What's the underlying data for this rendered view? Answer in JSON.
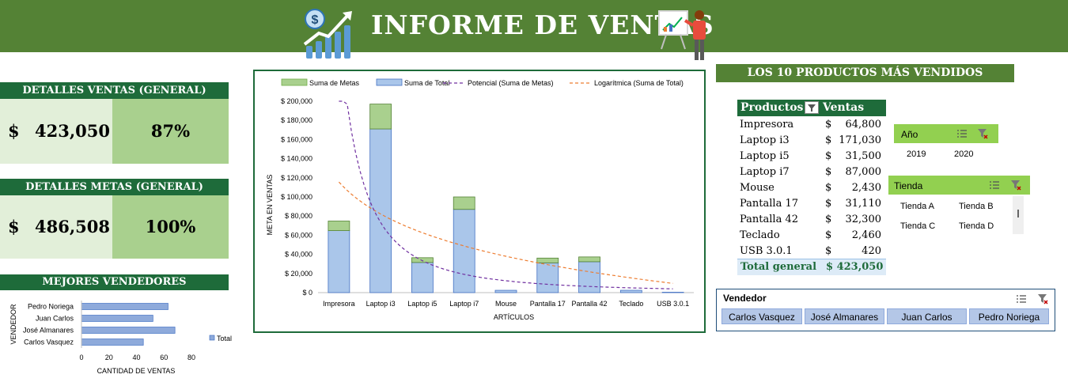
{
  "header": {
    "title": "INFORME DE VENTAS",
    "icons": [
      "dollar-growth-icon",
      "presenter-board-icon"
    ],
    "color": "#548235"
  },
  "ventas": {
    "title": "DETALLES VENTAS (GENERAL)",
    "currency": "$",
    "amount": "423,050",
    "percent": "87%"
  },
  "metas": {
    "title": "DETALLES METAS (GENERAL)",
    "currency": "$",
    "amount": "486,508",
    "percent": "100%"
  },
  "vendedores_chart": {
    "title": "MEJORES VENDEDORES",
    "chart_data": {
      "type": "bar",
      "orientation": "horizontal",
      "categories": [
        "Pedro Noriega",
        "Juan Carlos",
        "José Almanares",
        "Carlos Vasquez"
      ],
      "series": [
        {
          "name": "Total",
          "values": [
            63,
            52,
            68,
            45
          ]
        }
      ],
      "xlabel": "CANTIDAD DE VENTAS",
      "ylabel": "VENDEDOR",
      "xticks": [
        "0",
        "20",
        "40",
        "60",
        "80"
      ],
      "xlim": [
        0,
        80
      ],
      "legend": "right"
    }
  },
  "main_chart": {
    "chart_data": {
      "type": "bar",
      "stacked": true,
      "categories": [
        "Impresora",
        "Laptop i3",
        "Laptop i5",
        "Laptop i7",
        "Mouse",
        "Pantalla 17",
        "Pantalla 42",
        "Teclado",
        "USB 3.0.1"
      ],
      "series": [
        {
          "name": "Suma de Total",
          "values": [
            64800,
            171030,
            31500,
            87000,
            2430,
            31110,
            32300,
            2460,
            420
          ],
          "color": "#aac6ea"
        },
        {
          "name": "Suma de Metas",
          "values": [
            10000,
            26000,
            5000,
            13000,
            0,
            5000,
            5000,
            0,
            0
          ],
          "color": "#a9d08e"
        }
      ],
      "trendlines": [
        {
          "name": "Potencial (Suma de Metas)",
          "color": "#7030a0"
        },
        {
          "name": "Logarítmica (Suma de Total)",
          "color": "#ed7d31"
        }
      ],
      "yticks": [
        "$ 0",
        "$ 20,000",
        "$ 40,000",
        "$ 60,000",
        "$ 80,000",
        "$ 100,000",
        "$ 120,000",
        "$ 140,000",
        "$ 160,000",
        "$ 180,000",
        "$ 200,000"
      ],
      "ylim": [
        0,
        200000
      ],
      "xlabel": "ARTÍCULOS",
      "ylabel": "META EN VENTAS",
      "legend": "top"
    }
  },
  "top10": {
    "title": "LOS 10 PRODUCTOS MÁS VENDIDOS",
    "col_products": "Productos",
    "col_sales": "Ventas",
    "currency": "$",
    "rows": [
      {
        "product": "Impresora",
        "value": "64,800"
      },
      {
        "product": "Laptop i3",
        "value": "171,030"
      },
      {
        "product": "Laptop i5",
        "value": "31,500"
      },
      {
        "product": "Laptop i7",
        "value": "87,000"
      },
      {
        "product": "Mouse",
        "value": "2,430"
      },
      {
        "product": "Pantalla 17",
        "value": "31,110"
      },
      {
        "product": "Pantalla 42",
        "value": "32,300"
      },
      {
        "product": "Teclado",
        "value": "2,460"
      },
      {
        "product": "USB 3.0.1",
        "value": "420"
      }
    ],
    "total_label": "Total general",
    "total_value": "$ 423,050"
  },
  "slicer_year": {
    "title": "Año",
    "items": [
      "2019",
      "2020"
    ]
  },
  "slicer_store": {
    "title": "Tienda",
    "items": [
      "Tienda A",
      "Tienda B",
      "Tienda C",
      "Tienda D"
    ]
  },
  "slicer_seller": {
    "title": "Vendedor",
    "items": [
      "Carlos Vasquez",
      "José Almanares",
      "Juan Carlos",
      "Pedro Noriega"
    ]
  }
}
